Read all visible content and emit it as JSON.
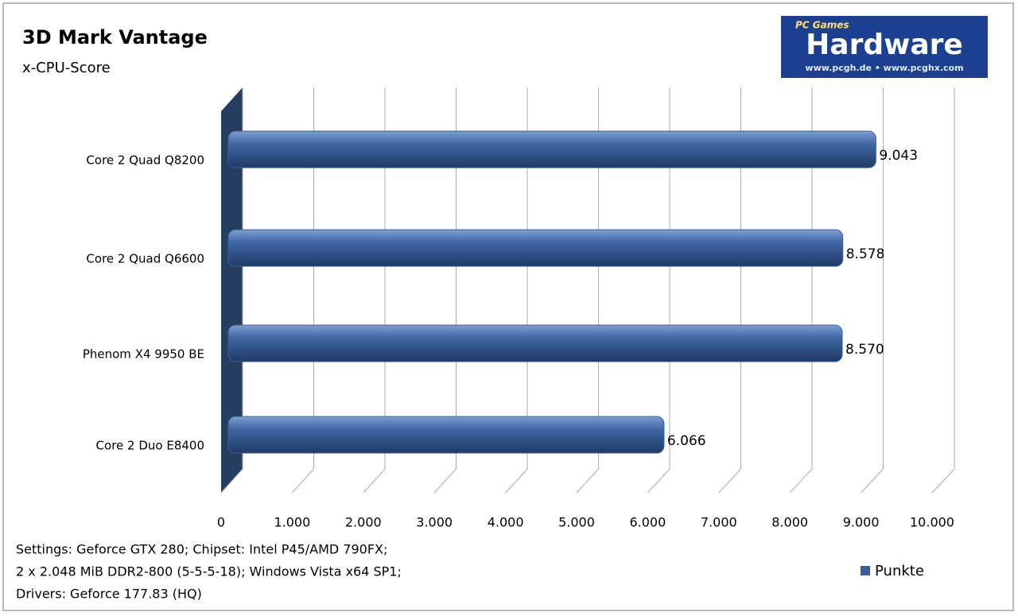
{
  "chart_data": {
    "type": "bar",
    "orientation": "horizontal",
    "title": "3D Mark Vantage",
    "subtitle": "x-CPU-Score",
    "categories": [
      "Core 2 Quad Q8200",
      "Core 2 Quad Q6600",
      "Phenom X4 9950 BE",
      "Core 2 Duo E8400"
    ],
    "series": [
      {
        "name": "Punkte",
        "color": "#3b5f96",
        "values": [
          9043,
          8578,
          8570,
          6066
        ],
        "value_labels": [
          "9.043",
          "8.578",
          "8.570",
          "6.066"
        ]
      }
    ],
    "xlim": [
      0,
      10000
    ],
    "xticks": [
      0,
      {
        "value": 1000,
        "label": "1.000"
      },
      {
        "value": 2000,
        "label": "2.000"
      },
      {
        "value": 3000,
        "label": "3.000"
      },
      {
        "value": 4000,
        "label": "4.000"
      },
      {
        "value": 5000,
        "label": "5.000"
      },
      {
        "value": 6000,
        "label": "6.000"
      },
      {
        "value": 7000,
        "label": "7.000"
      },
      {
        "value": 8000,
        "label": "8.000"
      },
      {
        "value": 9000,
        "label": "9.000"
      },
      {
        "value": 10000,
        "label": "10.000"
      }
    ],
    "grid": true,
    "legend": "bottom-right",
    "notes": [
      "Settings: Geforce GTX 280; Chipset: Intel P45/AMD 790FX;",
      "2 x 2.048 MiB DDR2-800 (5-5-5-18);  Windows Vista x64 SP1;",
      "Drivers: Geforce 177.83 (HQ)"
    ],
    "logo": {
      "top": "PC Games",
      "main": "Hardware",
      "url": "www.pcgh.de • www.pcghx.com"
    }
  }
}
